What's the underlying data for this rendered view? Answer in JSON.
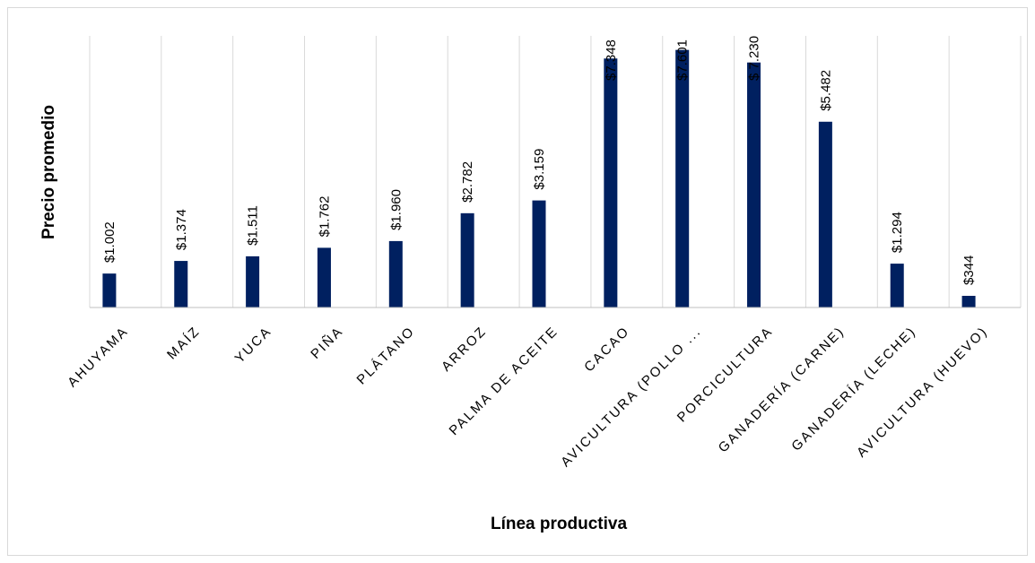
{
  "chart_data": {
    "type": "bar",
    "title": "",
    "xlabel": "Línea productiva",
    "ylabel": "Precio promedio",
    "categories": [
      "AHUYAMA",
      "MAÍZ",
      "YUCA",
      "PIÑA",
      "PLÁTANO",
      "ARROZ",
      "PALMA DE ACEITE",
      "CACAO",
      "AVICULTURA (POLLO ...",
      "PORCICULTURA",
      "GANADERÍA (CARNE)",
      "GANADERÍA (LECHE)",
      "AVICULTURA (HUEVO)"
    ],
    "values": [
      1002,
      1374,
      1511,
      1762,
      1960,
      2782,
      3159,
      7348,
      7601,
      7230,
      5482,
      1294,
      344
    ],
    "data_labels": [
      "$1.002",
      "$1.374",
      "$1.511",
      "$1.762",
      "$1.960",
      "$2.782",
      "$3.159",
      "$7.348",
      "$7.601",
      "$ 7.230",
      "$5.482",
      "$1.294",
      "$344"
    ],
    "ylim": [
      0,
      8000
    ],
    "grid": true,
    "bar_color": "#002060",
    "legend": "none"
  }
}
